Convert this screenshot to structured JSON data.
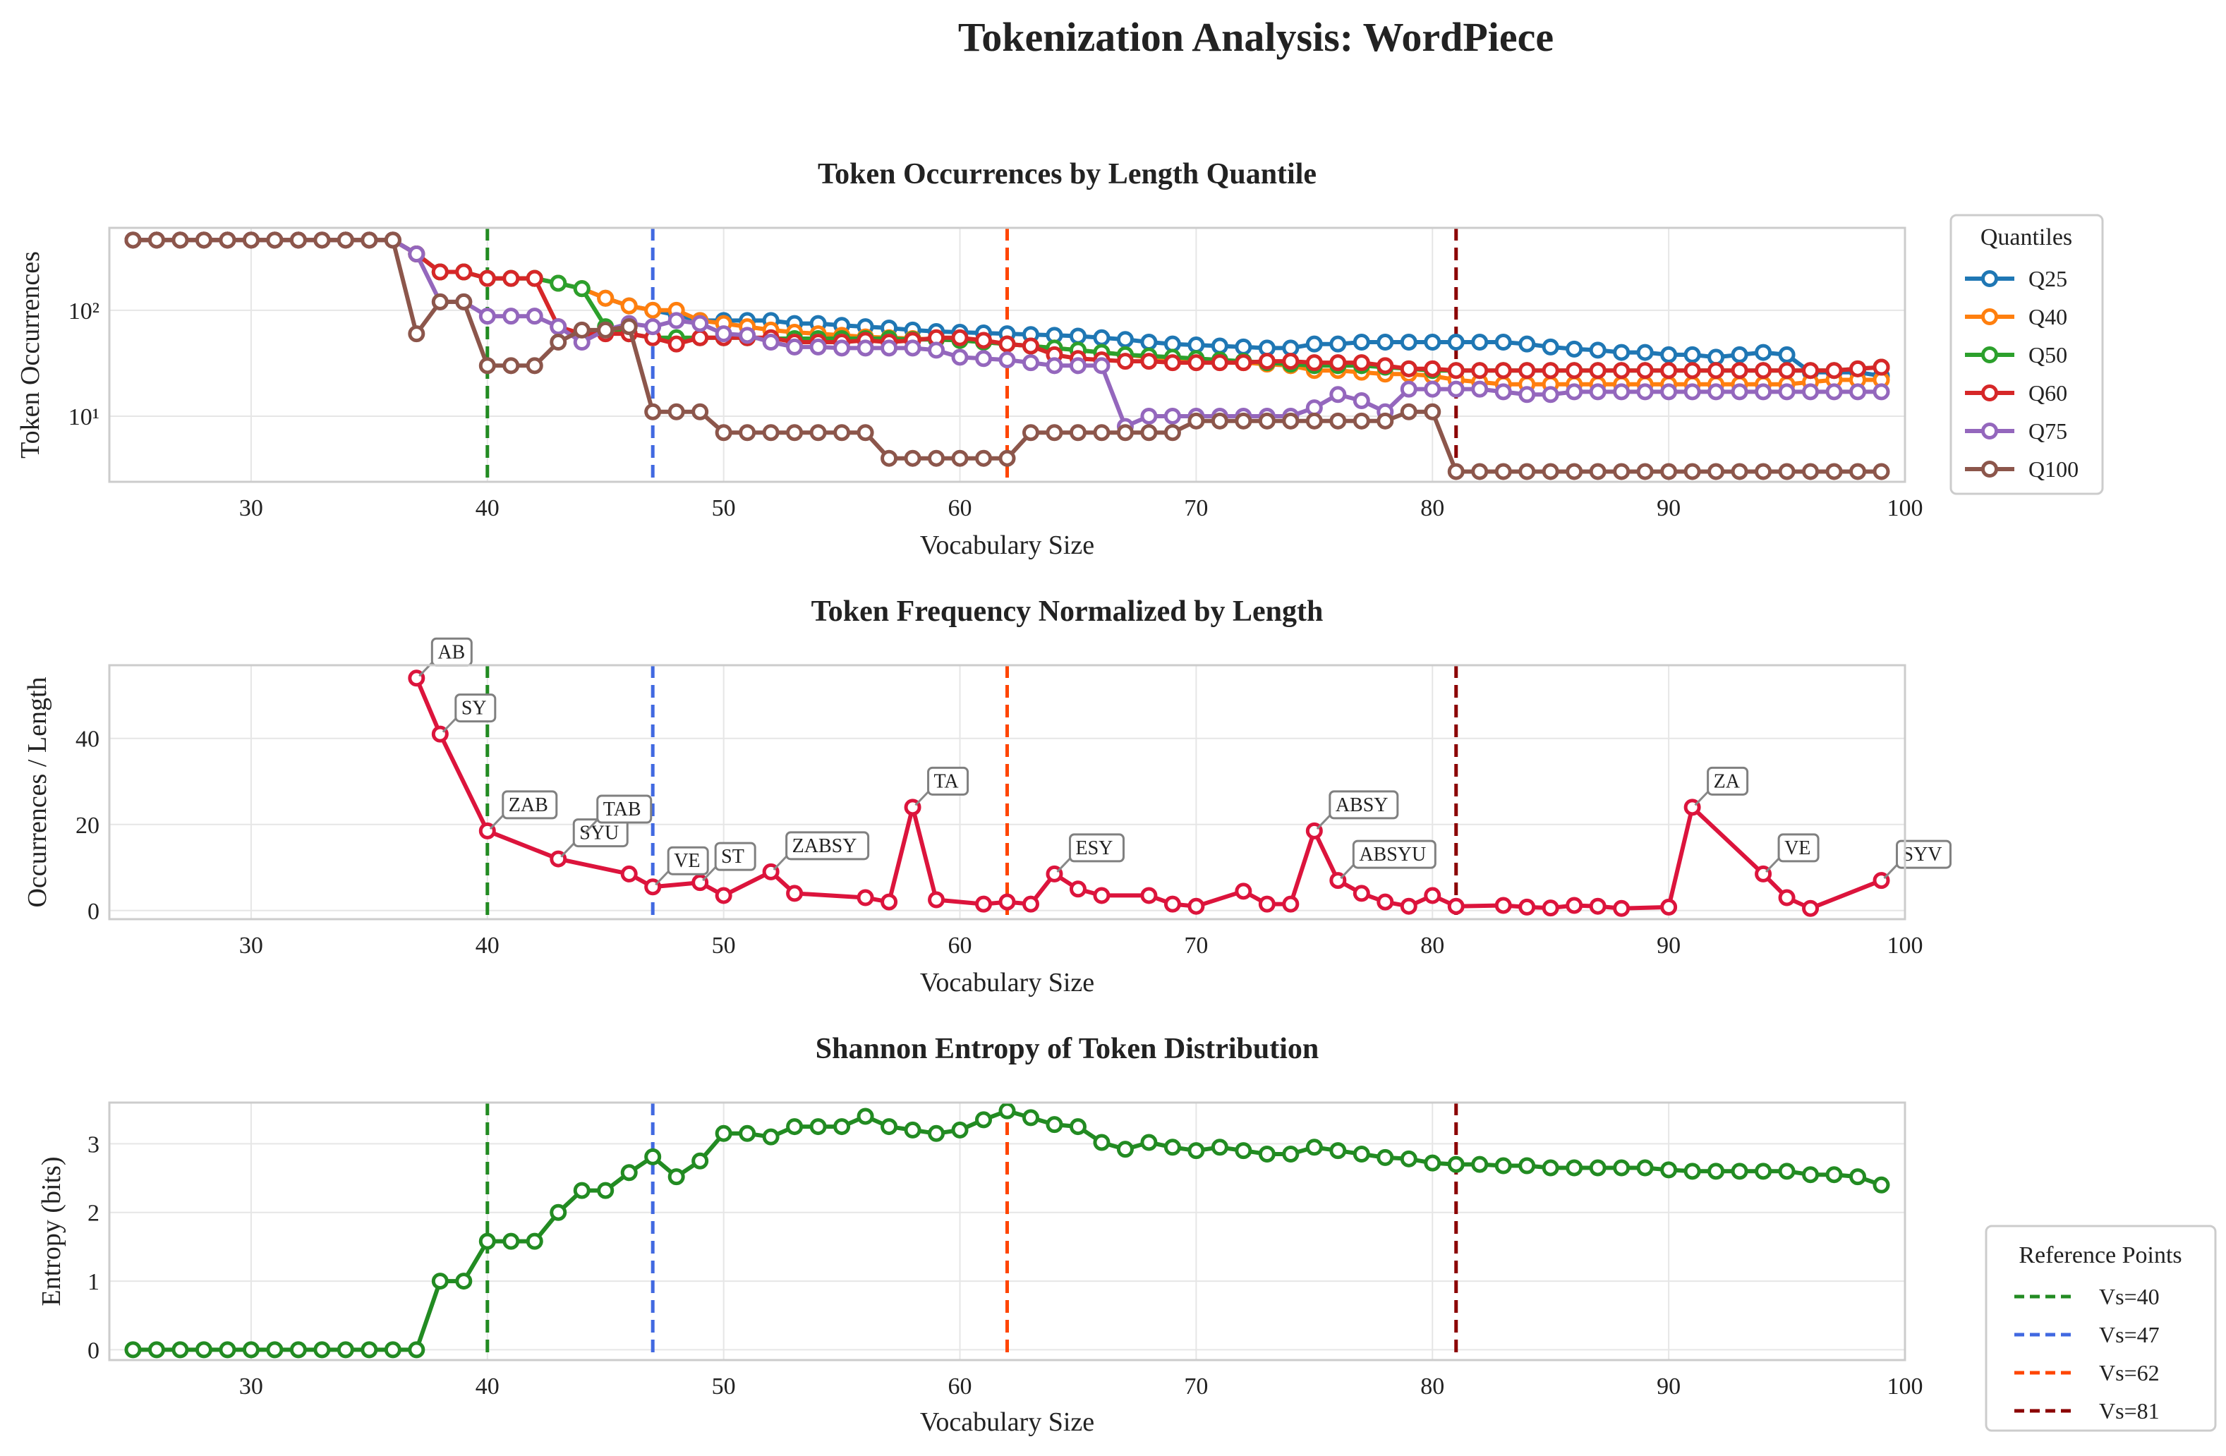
{
  "figure_title": "Tokenization Analysis: WordPiece",
  "colors": {
    "Q25": "#1f77b4",
    "Q40": "#ff7f0e",
    "Q50": "#2ca02c",
    "Q60": "#d62728",
    "Q75": "#9467bd",
    "Q100": "#8c564b",
    "normalized": "#dc143c",
    "entropy": "#228b22",
    "ref_40": "#228b22",
    "ref_47": "#4169e1",
    "ref_62": "#ff4500",
    "ref_81": "#8b0000"
  },
  "legends": {
    "quantiles_title": "Quantiles",
    "reference_title": "Reference Points",
    "reference_items": [
      "Vs=40",
      "Vs=47",
      "Vs=62",
      "Vs=81"
    ]
  },
  "chart_data": [
    {
      "type": "line",
      "title": "Token Occurrences by Length Quantile",
      "xlabel": "Vocabulary Size",
      "ylabel": "Token Occurrences",
      "xlim": [
        24,
        100
      ],
      "ylim": [
        2.4,
        600
      ],
      "yscale": "log",
      "xticks": [
        30,
        40,
        50,
        60,
        70,
        80,
        90,
        100
      ],
      "yticks": [
        10,
        100
      ],
      "ytick_labels": [
        "10¹",
        "10²"
      ],
      "grid": true,
      "reference_lines": [
        40,
        47,
        62,
        81
      ],
      "x": [
        25,
        26,
        27,
        28,
        29,
        30,
        31,
        32,
        33,
        34,
        35,
        36,
        37,
        38,
        39,
        40,
        41,
        42,
        43,
        44,
        45,
        46,
        47,
        48,
        49,
        50,
        51,
        52,
        53,
        54,
        55,
        56,
        57,
        58,
        59,
        60,
        61,
        62,
        63,
        64,
        65,
        66,
        67,
        68,
        69,
        70,
        71,
        72,
        73,
        74,
        75,
        76,
        77,
        78,
        79,
        80,
        81,
        82,
        83,
        84,
        85,
        86,
        87,
        88,
        89,
        90,
        91,
        92,
        93,
        94,
        95,
        96,
        97,
        98,
        99
      ],
      "series": [
        {
          "name": "Q25",
          "color_key": "Q25",
          "values": [
            460,
            460,
            460,
            460,
            460,
            460,
            460,
            460,
            460,
            460,
            460,
            460,
            340,
            230,
            230,
            200,
            200,
            200,
            180,
            160,
            130,
            110,
            100,
            90,
            80,
            80,
            80,
            80,
            75,
            75,
            72,
            70,
            68,
            65,
            63,
            62,
            61,
            60,
            59,
            58,
            57,
            55,
            53,
            50,
            48,
            47,
            46,
            45,
            44,
            44,
            48,
            48,
            50,
            50,
            50,
            50,
            50,
            50,
            50,
            48,
            45,
            43,
            42,
            40,
            40,
            38,
            38,
            36,
            38,
            40,
            38,
            26,
            26,
            26,
            24
          ]
        },
        {
          "name": "Q40",
          "color_key": "Q40",
          "values": [
            460,
            460,
            460,
            460,
            460,
            460,
            460,
            460,
            460,
            460,
            460,
            460,
            340,
            230,
            230,
            200,
            200,
            200,
            180,
            160,
            130,
            110,
            100,
            100,
            80,
            75,
            70,
            65,
            62,
            60,
            58,
            56,
            55,
            54,
            53,
            52,
            50,
            48,
            46,
            44,
            42,
            40,
            38,
            36,
            35,
            34,
            33,
            32,
            31,
            30,
            27,
            27,
            26,
            25,
            25,
            24,
            22,
            21,
            20,
            20,
            20,
            20,
            20,
            20,
            20,
            20,
            20,
            20,
            20,
            20,
            20,
            21,
            22,
            22,
            22
          ]
        },
        {
          "name": "Q50",
          "color_key": "Q50",
          "values": [
            460,
            460,
            460,
            460,
            460,
            460,
            460,
            460,
            460,
            460,
            460,
            460,
            340,
            230,
            230,
            200,
            200,
            200,
            180,
            160,
            70,
            60,
            55,
            55,
            55,
            55,
            55,
            54,
            54,
            54,
            54,
            54,
            54,
            53,
            53,
            52,
            50,
            48,
            46,
            44,
            42,
            40,
            38,
            37,
            36,
            35,
            34,
            33,
            32,
            31,
            30,
            30,
            30,
            29,
            28,
            27,
            27,
            27,
            27,
            27,
            27,
            27,
            27,
            27,
            27,
            27,
            27,
            27,
            27,
            27,
            27,
            27,
            27,
            28,
            29
          ]
        },
        {
          "name": "Q60",
          "color_key": "Q60",
          "values": [
            460,
            460,
            460,
            460,
            460,
            460,
            460,
            460,
            460,
            460,
            460,
            460,
            340,
            230,
            230,
            200,
            200,
            200,
            70,
            60,
            60,
            60,
            55,
            48,
            55,
            55,
            55,
            55,
            50,
            50,
            50,
            52,
            50,
            52,
            55,
            55,
            52,
            48,
            46,
            38,
            35,
            34,
            33,
            33,
            32,
            32,
            32,
            32,
            33,
            33,
            32,
            32,
            32,
            30,
            28,
            28,
            27,
            27,
            27,
            27,
            27,
            27,
            27,
            27,
            27,
            27,
            27,
            27,
            27,
            27,
            27,
            27,
            27,
            28,
            29
          ]
        },
        {
          "name": "Q75",
          "color_key": "Q75",
          "values": [
            460,
            460,
            460,
            460,
            460,
            460,
            460,
            460,
            460,
            460,
            460,
            460,
            340,
            120,
            120,
            88,
            88,
            88,
            70,
            50,
            65,
            75,
            70,
            80,
            75,
            60,
            58,
            50,
            45,
            45,
            44,
            44,
            44,
            44,
            42,
            36,
            35,
            34,
            32,
            30,
            30,
            30,
            8,
            10,
            10,
            10,
            10,
            10,
            10,
            10,
            12,
            16,
            14,
            11,
            18,
            18,
            18,
            18,
            17,
            16,
            16,
            17,
            17,
            17,
            17,
            17,
            17,
            17,
            17,
            17,
            17,
            17,
            17,
            17,
            17
          ]
        },
        {
          "name": "Q100",
          "color_key": "Q100",
          "values": [
            460,
            460,
            460,
            460,
            460,
            460,
            460,
            460,
            460,
            460,
            460,
            460,
            60,
            120,
            120,
            30,
            30,
            30,
            50,
            65,
            65,
            70,
            11,
            11,
            11,
            7,
            7,
            7,
            7,
            7,
            7,
            7,
            4,
            4,
            4,
            4,
            4,
            4,
            7,
            7,
            7,
            7,
            7,
            7,
            7,
            9,
            9,
            9,
            9,
            9,
            9,
            9,
            9,
            9,
            11,
            11,
            3,
            3,
            3,
            3,
            3,
            3,
            3,
            3,
            3,
            3,
            3,
            3,
            3,
            3,
            3,
            3,
            3,
            3,
            3
          ]
        }
      ]
    },
    {
      "type": "line",
      "title": "Token Frequency Normalized by Length",
      "xlabel": "Vocabulary Size",
      "ylabel": "Occurrences / Length",
      "xlim": [
        24,
        100
      ],
      "ylim": [
        -2,
        57
      ],
      "xticks": [
        30,
        40,
        50,
        60,
        70,
        80,
        90,
        100
      ],
      "yticks": [
        0,
        20,
        40
      ],
      "grid": true,
      "reference_lines": [
        40,
        47,
        62,
        81
      ],
      "series": [
        {
          "name": "",
          "color_key": "normalized",
          "x": [
            37,
            38,
            40,
            43,
            46,
            47,
            49,
            50,
            52,
            53,
            56,
            57,
            58,
            59,
            61,
            62,
            63,
            64,
            65,
            66,
            68,
            69,
            70,
            72,
            73,
            74,
            75,
            76,
            77,
            78,
            79,
            80,
            81,
            83,
            84,
            85,
            86,
            87,
            88,
            90,
            91,
            94,
            95,
            96,
            99
          ],
          "values": [
            54,
            41,
            18.5,
            12,
            8.5,
            5.5,
            6.5,
            3.5,
            9,
            4,
            3,
            2,
            24,
            2.5,
            1.5,
            2,
            1.5,
            8.5,
            5,
            3.5,
            3.5,
            1.5,
            1,
            4.5,
            1.5,
            1.5,
            18.5,
            7,
            4,
            2,
            1,
            3.5,
            1,
            1.2,
            0.8,
            0.6,
            1.2,
            1,
            0.5,
            0.8,
            24,
            8.5,
            3,
            0.5,
            7
          ]
        }
      ],
      "annotations": [
        {
          "x": 37,
          "y": 54,
          "text": "AB"
        },
        {
          "x": 38,
          "y": 41,
          "text": "SY"
        },
        {
          "x": 40,
          "y": 18.5,
          "text": "ZAB"
        },
        {
          "x": 43,
          "y": 12,
          "text": "SYU"
        },
        {
          "x": 44,
          "y": 17.5,
          "text": "TAB"
        },
        {
          "x": 47,
          "y": 5.5,
          "text": "VE"
        },
        {
          "x": 49,
          "y": 6.5,
          "text": "ST"
        },
        {
          "x": 52,
          "y": 9,
          "text": "ZABSY"
        },
        {
          "x": 58,
          "y": 24,
          "text": "TA"
        },
        {
          "x": 64,
          "y": 8.5,
          "text": "ESY"
        },
        {
          "x": 75,
          "y": 18.5,
          "text": "ABSY"
        },
        {
          "x": 76,
          "y": 7,
          "text": "ABSYU"
        },
        {
          "x": 91,
          "y": 24,
          "text": "ZA"
        },
        {
          "x": 94,
          "y": 8.5,
          "text": "VE"
        },
        {
          "x": 99,
          "y": 7,
          "text": "SYV"
        }
      ]
    },
    {
      "type": "line",
      "title": "Shannon Entropy of Token Distribution",
      "xlabel": "Vocabulary Size",
      "ylabel": "Entropy (bits)",
      "xlim": [
        24,
        100
      ],
      "ylim": [
        -0.15,
        3.6
      ],
      "xticks": [
        30,
        40,
        50,
        60,
        70,
        80,
        90,
        100
      ],
      "yticks": [
        0,
        1,
        2,
        3
      ],
      "grid": true,
      "reference_lines": [
        40,
        47,
        62,
        81
      ],
      "series": [
        {
          "name": "",
          "color_key": "entropy",
          "x": [
            25,
            26,
            27,
            28,
            29,
            30,
            31,
            32,
            33,
            34,
            35,
            36,
            37,
            38,
            39,
            40,
            41,
            42,
            43,
            44,
            45,
            46,
            47,
            48,
            49,
            50,
            51,
            52,
            53,
            54,
            55,
            56,
            57,
            58,
            59,
            60,
            61,
            62,
            63,
            64,
            65,
            66,
            67,
            68,
            69,
            70,
            71,
            72,
            73,
            74,
            75,
            76,
            77,
            78,
            79,
            80,
            81,
            82,
            83,
            84,
            85,
            86,
            87,
            88,
            89,
            90,
            91,
            92,
            93,
            94,
            95,
            96,
            97,
            98,
            99
          ],
          "values": [
            0,
            0,
            0,
            0,
            0,
            0,
            0,
            0,
            0,
            0,
            0,
            0,
            0,
            1,
            1,
            1.58,
            1.58,
            1.58,
            2,
            2.32,
            2.32,
            2.58,
            2.81,
            2.52,
            2.75,
            3.15,
            3.15,
            3.1,
            3.25,
            3.25,
            3.25,
            3.4,
            3.25,
            3.2,
            3.15,
            3.2,
            3.35,
            3.48,
            3.38,
            3.28,
            3.25,
            3.02,
            2.92,
            3.02,
            2.95,
            2.9,
            2.95,
            2.9,
            2.85,
            2.85,
            2.95,
            2.9,
            2.85,
            2.8,
            2.78,
            2.72,
            2.7,
            2.7,
            2.68,
            2.68,
            2.65,
            2.65,
            2.65,
            2.65,
            2.65,
            2.62,
            2.6,
            2.6,
            2.6,
            2.6,
            2.6,
            2.55,
            2.55,
            2.52,
            2.4
          ]
        }
      ]
    }
  ]
}
